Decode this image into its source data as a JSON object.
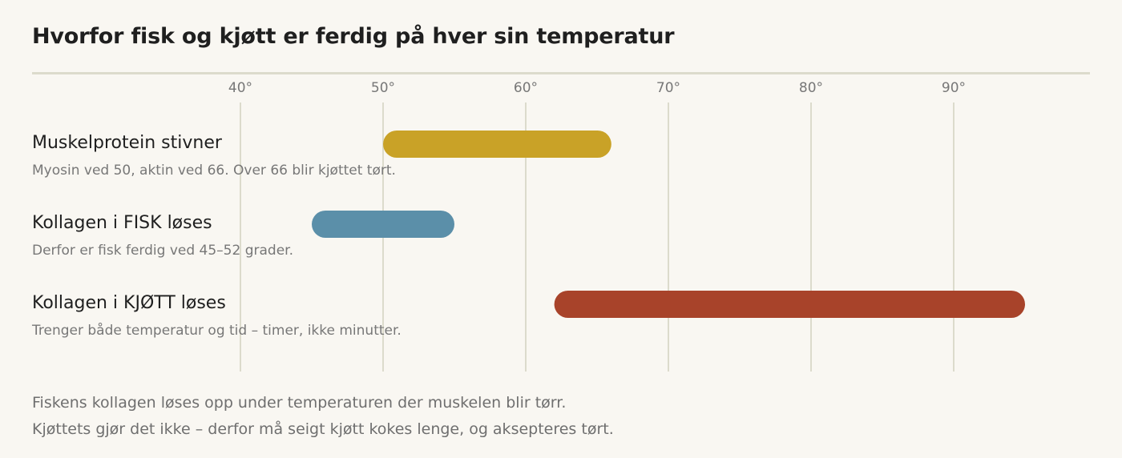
{
  "chart_data": {
    "type": "bar",
    "title": "Hvorfor fisk og kjøtt er ferdig på hver sin temperatur",
    "x_ticks": [
      40,
      50,
      60,
      70,
      80,
      90
    ],
    "x_tick_labels": [
      "40°",
      "50°",
      "60°",
      "70°",
      "80°",
      "90°"
    ],
    "xlim": [
      40,
      90
    ],
    "grid": true,
    "series": [
      {
        "label": "Muskelprotein stivner",
        "description": "Myosin ved 50, aktin ved 66. Over 66 blir kjøttet tørt.",
        "start": 50,
        "end": 66,
        "color": "#c9a227"
      },
      {
        "label": "Kollagen i FISK løses",
        "description": "Derfor er fisk ferdig ved 45–52 grader.",
        "start": 45,
        "end": 55,
        "color": "#5b8fa9"
      },
      {
        "label": "Kollagen i KJØTT løses",
        "description": "Trenger både temperatur og tid – timer, ikke minutter.",
        "start": 62,
        "end": 95,
        "color": "#a8432a"
      }
    ]
  },
  "footnote": {
    "line1": "Fiskens kollagen løses opp under temperaturen der muskelen blir tørr.",
    "line2": "Kjøttets gjør det ikke – derfor må seigt kjøtt kokes lenge, og aksepteres tørt."
  }
}
